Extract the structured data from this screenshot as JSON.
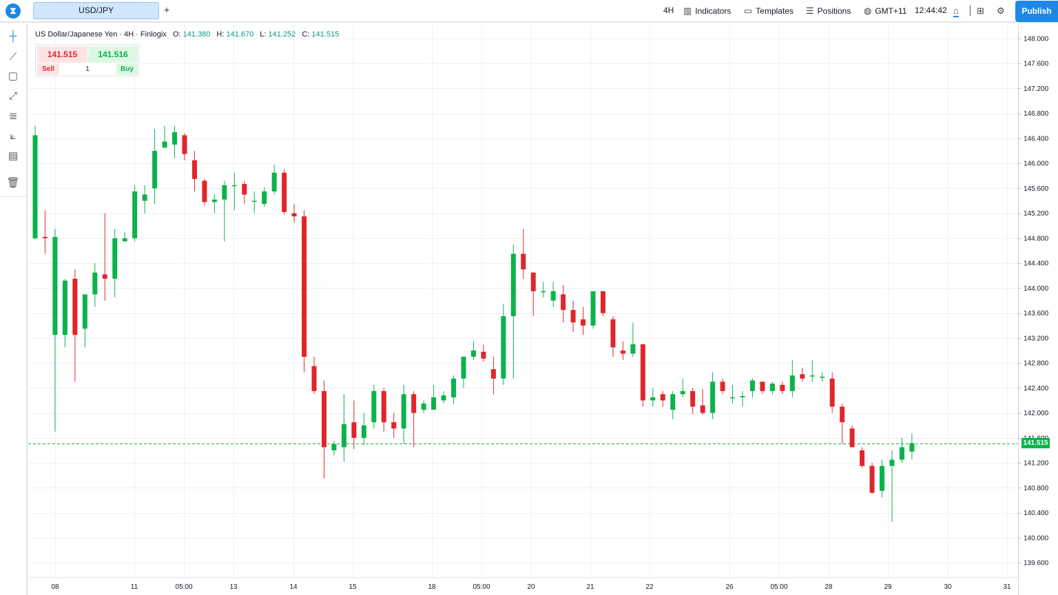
{
  "toolbar": {
    "logo_glyph": "⧗",
    "symbol_tab": "USD/JPY",
    "add_tab": "+",
    "interval": "4H",
    "indicators": "Indicators",
    "templates": "Templates",
    "positions": "Positions",
    "timezone": "GMT+11",
    "clock": "12:44:42",
    "publish": "Publish"
  },
  "legend": {
    "name": "US Dollar/Japanese Yen",
    "interval": "4H",
    "source": "Finlogix",
    "o_label": "O:",
    "o": "141.380",
    "h_label": "H:",
    "h": "141.670",
    "l_label": "L:",
    "l": "141.252",
    "c_label": "C:",
    "c": "141.515"
  },
  "trade": {
    "sell_price": "141.515",
    "buy_price": "141.516",
    "sell_label": "Sell",
    "buy_label": "Buy",
    "quantity": "1"
  },
  "current_price": "141.515",
  "colors": {
    "up": "#0bb34a",
    "down": "#e0262b",
    "accent": "#1e88e5",
    "grid": "#eef0f3"
  },
  "chart_data": {
    "type": "candlestick",
    "y_ticks": [
      "148.000",
      "147.600",
      "147.200",
      "146.800",
      "146.400",
      "146.000",
      "145.600",
      "145.200",
      "144.800",
      "144.400",
      "144.000",
      "143.600",
      "143.200",
      "142.800",
      "142.400",
      "142.000",
      "141.600",
      "141.200",
      "140.800",
      "140.400",
      "140.000",
      "139.600"
    ],
    "x_ticks": [
      "08",
      "11",
      "05:00",
      "13",
      "14",
      "15",
      "18",
      "05:00",
      "20",
      "21",
      "22",
      "26",
      "05:00",
      "28",
      "29",
      "30",
      "31"
    ],
    "ylim": [
      139.6,
      148.0
    ],
    "current_price": 141.515,
    "candles": [
      {
        "o": 144.8,
        "h": 146.6,
        "l": 144.78,
        "c": 146.45
      },
      {
        "o": 144.82,
        "h": 145.25,
        "l": 144.55,
        "c": 144.8
      },
      {
        "o": 143.25,
        "h": 144.95,
        "l": 141.7,
        "c": 144.82
      },
      {
        "o": 143.25,
        "h": 144.15,
        "l": 143.05,
        "c": 144.12
      },
      {
        "o": 144.15,
        "h": 144.3,
        "l": 142.5,
        "c": 143.25
      },
      {
        "o": 143.35,
        "h": 143.9,
        "l": 143.05,
        "c": 143.9
      },
      {
        "o": 143.9,
        "h": 144.4,
        "l": 143.7,
        "c": 144.25
      },
      {
        "o": 144.22,
        "h": 145.2,
        "l": 143.8,
        "c": 144.15
      },
      {
        "o": 144.15,
        "h": 144.95,
        "l": 143.85,
        "c": 144.8
      },
      {
        "o": 144.75,
        "h": 144.9,
        "l": 144.75,
        "c": 144.8
      },
      {
        "o": 144.8,
        "h": 145.65,
        "l": 144.75,
        "c": 145.55
      },
      {
        "o": 145.4,
        "h": 145.65,
        "l": 145.2,
        "c": 145.5
      },
      {
        "o": 145.6,
        "h": 146.55,
        "l": 145.35,
        "c": 146.2
      },
      {
        "o": 146.25,
        "h": 146.6,
        "l": 146.25,
        "c": 146.35
      },
      {
        "o": 146.3,
        "h": 146.6,
        "l": 146.08,
        "c": 146.5
      },
      {
        "o": 146.45,
        "h": 146.48,
        "l": 146.05,
        "c": 146.15
      },
      {
        "o": 146.05,
        "h": 146.2,
        "l": 145.55,
        "c": 145.75
      },
      {
        "o": 145.72,
        "h": 145.75,
        "l": 145.32,
        "c": 145.38
      },
      {
        "o": 145.38,
        "h": 145.5,
        "l": 145.2,
        "c": 145.42
      },
      {
        "o": 145.42,
        "h": 145.72,
        "l": 144.75,
        "c": 145.65
      },
      {
        "o": 145.65,
        "h": 145.85,
        "l": 145.25,
        "c": 145.65
      },
      {
        "o": 145.67,
        "h": 145.72,
        "l": 145.35,
        "c": 145.5
      },
      {
        "o": 145.4,
        "h": 145.55,
        "l": 145.2,
        "c": 145.4
      },
      {
        "o": 145.35,
        "h": 145.62,
        "l": 145.3,
        "c": 145.55
      },
      {
        "o": 145.55,
        "h": 145.98,
        "l": 145.5,
        "c": 145.85
      },
      {
        "o": 145.85,
        "h": 145.9,
        "l": 145.18,
        "c": 145.22
      },
      {
        "o": 145.2,
        "h": 145.35,
        "l": 145.05,
        "c": 145.15
      },
      {
        "o": 145.15,
        "h": 145.25,
        "l": 142.65,
        "c": 142.9
      },
      {
        "o": 142.75,
        "h": 142.9,
        "l": 142.3,
        "c": 142.35
      },
      {
        "o": 142.35,
        "h": 142.52,
        "l": 140.95,
        "c": 141.45
      },
      {
        "o": 141.4,
        "h": 141.55,
        "l": 141.32,
        "c": 141.5
      },
      {
        "o": 141.45,
        "h": 142.3,
        "l": 141.22,
        "c": 141.82
      },
      {
        "o": 141.85,
        "h": 142.2,
        "l": 141.42,
        "c": 141.6
      },
      {
        "o": 141.6,
        "h": 142.0,
        "l": 141.48,
        "c": 141.8
      },
      {
        "o": 141.85,
        "h": 142.45,
        "l": 141.75,
        "c": 142.35
      },
      {
        "o": 142.35,
        "h": 142.4,
        "l": 141.7,
        "c": 141.85
      },
      {
        "o": 141.85,
        "h": 142.0,
        "l": 141.6,
        "c": 141.75
      },
      {
        "o": 141.75,
        "h": 142.45,
        "l": 141.5,
        "c": 142.3
      },
      {
        "o": 142.3,
        "h": 142.35,
        "l": 141.45,
        "c": 142.0
      },
      {
        "o": 142.05,
        "h": 142.2,
        "l": 142.0,
        "c": 142.15
      },
      {
        "o": 142.05,
        "h": 142.45,
        "l": 142.05,
        "c": 142.25
      },
      {
        "o": 142.2,
        "h": 142.35,
        "l": 142.15,
        "c": 142.28
      },
      {
        "o": 142.25,
        "h": 142.6,
        "l": 142.15,
        "c": 142.55
      },
      {
        "o": 142.55,
        "h": 142.9,
        "l": 142.4,
        "c": 142.9
      },
      {
        "o": 142.9,
        "h": 143.15,
        "l": 142.85,
        "c": 143.0
      },
      {
        "o": 142.98,
        "h": 143.1,
        "l": 142.82,
        "c": 142.87
      },
      {
        "o": 142.7,
        "h": 142.9,
        "l": 142.3,
        "c": 142.55
      },
      {
        "o": 142.55,
        "h": 143.75,
        "l": 142.45,
        "c": 143.55
      },
      {
        "o": 143.55,
        "h": 144.7,
        "l": 142.55,
        "c": 144.55
      },
      {
        "o": 144.55,
        "h": 144.95,
        "l": 144.15,
        "c": 144.3
      },
      {
        "o": 144.25,
        "h": 144.25,
        "l": 143.55,
        "c": 143.95
      },
      {
        "o": 143.95,
        "h": 144.1,
        "l": 143.85,
        "c": 143.95
      },
      {
        "o": 143.8,
        "h": 144.1,
        "l": 143.7,
        "c": 143.95
      },
      {
        "o": 143.9,
        "h": 144.05,
        "l": 143.45,
        "c": 143.65
      },
      {
        "o": 143.65,
        "h": 143.8,
        "l": 143.3,
        "c": 143.45
      },
      {
        "o": 143.5,
        "h": 143.7,
        "l": 143.25,
        "c": 143.4
      },
      {
        "o": 143.4,
        "h": 143.95,
        "l": 143.35,
        "c": 143.95
      },
      {
        "o": 143.95,
        "h": 143.95,
        "l": 143.55,
        "c": 143.6
      },
      {
        "o": 143.5,
        "h": 143.55,
        "l": 142.9,
        "c": 143.05
      },
      {
        "o": 143.0,
        "h": 143.15,
        "l": 142.85,
        "c": 142.95
      },
      {
        "o": 142.95,
        "h": 143.45,
        "l": 142.9,
        "c": 143.1
      },
      {
        "o": 143.1,
        "h": 143.1,
        "l": 142.1,
        "c": 142.2
      },
      {
        "o": 142.2,
        "h": 142.4,
        "l": 142.1,
        "c": 142.25
      },
      {
        "o": 142.3,
        "h": 142.35,
        "l": 142.1,
        "c": 142.2
      },
      {
        "o": 142.05,
        "h": 142.35,
        "l": 141.9,
        "c": 142.3
      },
      {
        "o": 142.3,
        "h": 142.55,
        "l": 142.25,
        "c": 142.35
      },
      {
        "o": 142.35,
        "h": 142.4,
        "l": 141.98,
        "c": 142.1
      },
      {
        "o": 142.12,
        "h": 142.38,
        "l": 141.97,
        "c": 142.0
      },
      {
        "o": 142.0,
        "h": 142.65,
        "l": 141.9,
        "c": 142.5
      },
      {
        "o": 142.5,
        "h": 142.55,
        "l": 142.3,
        "c": 142.35
      },
      {
        "o": 142.25,
        "h": 142.45,
        "l": 142.15,
        "c": 142.25
      },
      {
        "o": 142.25,
        "h": 142.35,
        "l": 142.1,
        "c": 142.27
      },
      {
        "o": 142.35,
        "h": 142.55,
        "l": 142.25,
        "c": 142.52
      },
      {
        "o": 142.5,
        "h": 142.5,
        "l": 142.3,
        "c": 142.35
      },
      {
        "o": 142.35,
        "h": 142.5,
        "l": 142.3,
        "c": 142.47
      },
      {
        "o": 142.45,
        "h": 142.5,
        "l": 142.3,
        "c": 142.35
      },
      {
        "o": 142.35,
        "h": 142.85,
        "l": 142.25,
        "c": 142.6
      },
      {
        "o": 142.62,
        "h": 142.72,
        "l": 142.5,
        "c": 142.55
      },
      {
        "o": 142.6,
        "h": 142.85,
        "l": 142.5,
        "c": 142.6
      },
      {
        "o": 142.58,
        "h": 142.65,
        "l": 142.5,
        "c": 142.58
      },
      {
        "o": 142.55,
        "h": 142.65,
        "l": 142.0,
        "c": 142.1
      },
      {
        "o": 142.1,
        "h": 142.15,
        "l": 141.5,
        "c": 141.85
      },
      {
        "o": 141.75,
        "h": 141.8,
        "l": 141.45,
        "c": 141.45
      },
      {
        "o": 141.4,
        "h": 141.45,
        "l": 141.12,
        "c": 141.15
      },
      {
        "o": 141.15,
        "h": 141.2,
        "l": 140.7,
        "c": 140.72
      },
      {
        "o": 140.75,
        "h": 141.25,
        "l": 140.65,
        "c": 141.15
      },
      {
        "o": 141.15,
        "h": 141.4,
        "l": 140.25,
        "c": 141.25
      },
      {
        "o": 141.25,
        "h": 141.6,
        "l": 141.2,
        "c": 141.45
      },
      {
        "o": 141.38,
        "h": 141.67,
        "l": 141.252,
        "c": 141.515
      }
    ]
  }
}
